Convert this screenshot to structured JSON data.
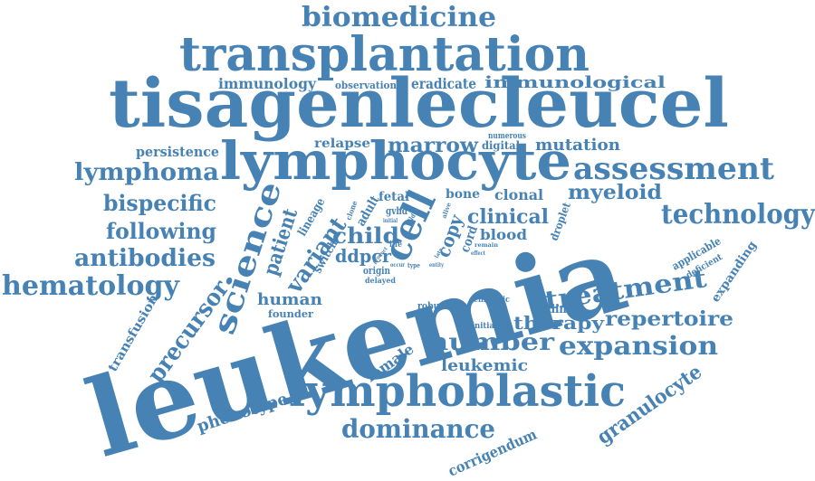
{
  "cloud": {
    "color": "#4682b4",
    "words": [
      "leukemia",
      "tisagenlecleucel",
      "lymphocyte",
      "transplantation",
      "lymphoblastic",
      "biomedicine",
      "cell",
      "science",
      "assessment",
      "technology",
      "lymphoma",
      "hematology",
      "antibodies",
      "following",
      "bispecific",
      "precursor",
      "variant",
      "patient",
      "treatment",
      "repertoire",
      "expansion",
      "number",
      "dominance",
      "phenotype",
      "granulocyte",
      "corrigendum",
      "myeloid",
      "clinical",
      "child",
      "immunology",
      "immunological",
      "eradicate",
      "observation",
      "persistence",
      "relapse",
      "marrow",
      "mutation",
      "therapy",
      "human",
      "female",
      "leukemic",
      "transfusion",
      "expanding",
      "applicable",
      "deficient",
      "droplet",
      "copy",
      "blood",
      "lineage",
      "ddpcr",
      "adult",
      "fetal",
      "bone",
      "clonal",
      "coding",
      "robust",
      "founder",
      "chimeric",
      "switch",
      "origin",
      "delayed",
      "cord",
      "gvhd",
      "initiate",
      "numerous",
      "digital",
      "life",
      "clone",
      "type",
      "effect",
      "remain",
      "wild",
      "occur",
      "alive",
      "late",
      "entity",
      "product",
      "initial"
    ]
  }
}
